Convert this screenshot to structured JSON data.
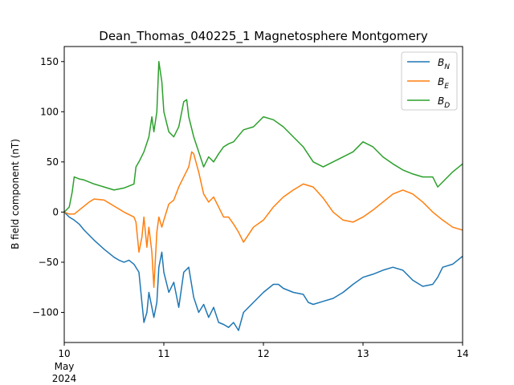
{
  "chart_data": {
    "type": "line",
    "title": "Dean_Thomas_040225_1 Magnetosphere Montgomery",
    "xlabel": "",
    "ylabel": "B field component (nT)",
    "xlim": [
      10,
      14
    ],
    "ylim": [
      -130,
      165
    ],
    "x_ticks": [
      {
        "value": 10,
        "label": "10",
        "sub": [
          "May",
          "2024"
        ]
      },
      {
        "value": 11,
        "label": "11"
      },
      {
        "value": 12,
        "label": "12"
      },
      {
        "value": 13,
        "label": "13"
      },
      {
        "value": 14,
        "label": "14"
      }
    ],
    "y_ticks": [
      -100,
      -50,
      0,
      50,
      100,
      150
    ],
    "grid": false,
    "legend_position": "top-right",
    "series": [
      {
        "name": "B_N",
        "name_base": "B",
        "name_sub": "N",
        "color": "#1f77b4",
        "x": [
          10.0,
          10.05,
          10.1,
          10.15,
          10.2,
          10.3,
          10.4,
          10.5,
          10.55,
          10.6,
          10.65,
          10.7,
          10.75,
          10.78,
          10.8,
          10.83,
          10.85,
          10.88,
          10.9,
          10.93,
          10.95,
          10.98,
          11.0,
          11.05,
          11.1,
          11.15,
          11.2,
          11.25,
          11.3,
          11.35,
          11.4,
          11.45,
          11.5,
          11.55,
          11.6,
          11.65,
          11.7,
          11.75,
          11.8,
          11.9,
          12.0,
          12.1,
          12.15,
          12.2,
          12.3,
          12.4,
          12.45,
          12.5,
          12.6,
          12.7,
          12.8,
          12.9,
          13.0,
          13.1,
          13.2,
          13.3,
          13.4,
          13.5,
          13.6,
          13.7,
          13.75,
          13.8,
          13.9,
          14.0
        ],
        "y": [
          0,
          -5,
          -8,
          -12,
          -18,
          -28,
          -37,
          -45,
          -48,
          -50,
          -48,
          -52,
          -60,
          -90,
          -110,
          -100,
          -80,
          -95,
          -105,
          -90,
          -55,
          -40,
          -60,
          -80,
          -70,
          -95,
          -60,
          -55,
          -85,
          -100,
          -92,
          -105,
          -95,
          -110,
          -112,
          -115,
          -110,
          -118,
          -100,
          -90,
          -80,
          -72,
          -72,
          -76,
          -80,
          -82,
          -90,
          -92,
          -89,
          -86,
          -80,
          -72,
          -65,
          -62,
          -58,
          -55,
          -58,
          -68,
          -74,
          -72,
          -65,
          -55,
          -52,
          -44
        ]
      },
      {
        "name": "B_E",
        "name_base": "B",
        "name_sub": "E",
        "color": "#ff7f0e",
        "x": [
          10.0,
          10.05,
          10.1,
          10.15,
          10.2,
          10.25,
          10.3,
          10.4,
          10.5,
          10.6,
          10.7,
          10.72,
          10.75,
          10.78,
          10.8,
          10.83,
          10.85,
          10.88,
          10.9,
          10.93,
          10.95,
          10.98,
          11.0,
          11.05,
          11.1,
          11.15,
          11.2,
          11.25,
          11.28,
          11.3,
          11.35,
          11.4,
          11.45,
          11.5,
          11.55,
          11.6,
          11.65,
          11.7,
          11.75,
          11.8,
          11.9,
          12.0,
          12.1,
          12.2,
          12.3,
          12.4,
          12.5,
          12.6,
          12.7,
          12.8,
          12.9,
          13.0,
          13.1,
          13.2,
          13.3,
          13.4,
          13.5,
          13.6,
          13.7,
          13.8,
          13.9,
          14.0
        ],
        "y": [
          0,
          -2,
          -2,
          2,
          6,
          10,
          13,
          12,
          6,
          0,
          -5,
          -10,
          -40,
          -25,
          -5,
          -35,
          -15,
          -40,
          -75,
          -20,
          -5,
          -15,
          -8,
          8,
          12,
          25,
          35,
          45,
          60,
          58,
          40,
          18,
          10,
          15,
          5,
          -5,
          -5,
          -12,
          -20,
          -30,
          -15,
          -8,
          5,
          15,
          22,
          28,
          25,
          14,
          0,
          -8,
          -10,
          -5,
          2,
          10,
          18,
          22,
          18,
          10,
          0,
          -8,
          -15,
          -18
        ]
      },
      {
        "name": "B_D",
        "name_base": "B",
        "name_sub": "D",
        "color": "#2ca02c",
        "x": [
          10.0,
          10.05,
          10.08,
          10.1,
          10.15,
          10.2,
          10.25,
          10.3,
          10.4,
          10.5,
          10.6,
          10.7,
          10.72,
          10.75,
          10.8,
          10.85,
          10.88,
          10.9,
          10.93,
          10.95,
          10.98,
          11.0,
          11.05,
          11.1,
          11.15,
          11.2,
          11.23,
          11.25,
          11.3,
          11.35,
          11.4,
          11.45,
          11.5,
          11.55,
          11.6,
          11.65,
          11.7,
          11.8,
          11.9,
          12.0,
          12.1,
          12.2,
          12.3,
          12.4,
          12.5,
          12.6,
          12.7,
          12.8,
          12.9,
          13.0,
          13.1,
          13.2,
          13.3,
          13.4,
          13.5,
          13.6,
          13.7,
          13.75,
          13.8,
          13.9,
          14.0
        ],
        "y": [
          0,
          5,
          20,
          35,
          33,
          32,
          30,
          28,
          25,
          22,
          24,
          28,
          45,
          50,
          60,
          75,
          95,
          80,
          100,
          150,
          130,
          100,
          80,
          75,
          85,
          110,
          112,
          95,
          75,
          60,
          45,
          55,
          50,
          58,
          65,
          68,
          70,
          82,
          85,
          95,
          92,
          85,
          75,
          65,
          50,
          45,
          50,
          55,
          60,
          70,
          65,
          55,
          48,
          42,
          38,
          35,
          35,
          25,
          30,
          40,
          48
        ]
      }
    ]
  }
}
